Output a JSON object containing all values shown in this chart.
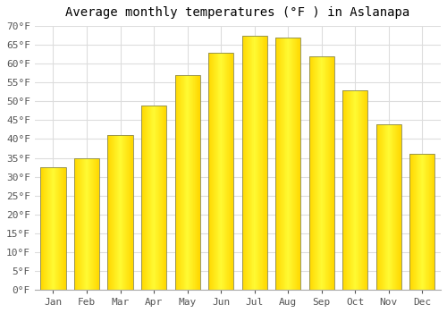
{
  "title": "Average monthly temperatures (°F ) in Aslanapa",
  "months": [
    "Jan",
    "Feb",
    "Mar",
    "Apr",
    "May",
    "Jun",
    "Jul",
    "Aug",
    "Sep",
    "Oct",
    "Nov",
    "Dec"
  ],
  "values": [
    32.5,
    35.0,
    41.0,
    49.0,
    57.0,
    63.0,
    67.5,
    67.0,
    62.0,
    53.0,
    44.0,
    36.0
  ],
  "bar_color": "#FFA500",
  "bar_edge_color": "#888855",
  "ylim": [
    0,
    70
  ],
  "yticks": [
    0,
    5,
    10,
    15,
    20,
    25,
    30,
    35,
    40,
    45,
    50,
    55,
    60,
    65,
    70
  ],
  "ytick_labels": [
    "0°F",
    "5°F",
    "10°F",
    "15°F",
    "20°F",
    "25°F",
    "30°F",
    "35°F",
    "40°F",
    "45°F",
    "50°F",
    "55°F",
    "60°F",
    "65°F",
    "70°F"
  ],
  "background_color": "#ffffff",
  "grid_color": "#dddddd",
  "title_fontsize": 10,
  "tick_fontsize": 8,
  "bar_width": 0.75
}
